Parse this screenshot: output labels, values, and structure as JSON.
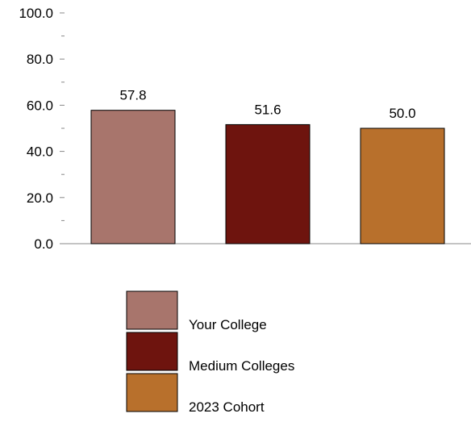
{
  "chart_data": {
    "type": "bar",
    "categories": [
      "Your College",
      "Medium Colleges",
      "2023 Cohort"
    ],
    "values": [
      57.8,
      51.6,
      50.0
    ],
    "data_labels": [
      "57.8",
      "51.6",
      "50.0"
    ],
    "colors": [
      "#a8756c",
      "#6e140e",
      "#b8702c"
    ],
    "ylim": [
      0,
      100
    ],
    "yticks": [
      "0.0",
      "20.0",
      "40.0",
      "60.0",
      "80.0",
      "100.0"
    ],
    "ytick_values": [
      0,
      20,
      40,
      60,
      80,
      100
    ],
    "minor_ticks": true,
    "grid": false,
    "legend": {
      "placement": "bottom",
      "entries": [
        "Your College",
        "Medium Colleges",
        "2023 Cohort"
      ]
    }
  }
}
